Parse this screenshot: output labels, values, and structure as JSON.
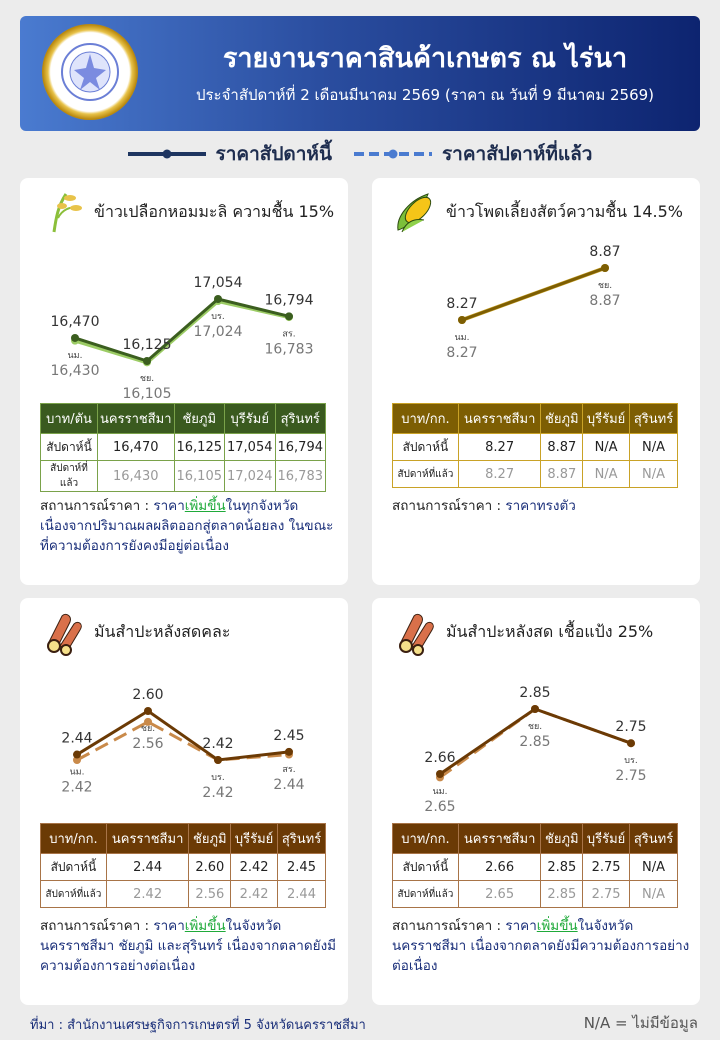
{
  "header": {
    "title": "รายงานราคาสินค้าเกษตร ณ ไร่นา",
    "subtitle": "ประจำสัปดาห์ที่ 2 เดือนมีนาคม 2569 (ราคา ณ วันที่ 9 มีนาคม 2569)"
  },
  "legend": {
    "current": "ราคาสัปดาห์นี้",
    "previous": "ราคาสัปดาห์ที่แล้ว",
    "current_color": "#1e3560",
    "previous_color": "#4a7bd0"
  },
  "status_label": "สถานการณ์ราคา : ",
  "cards": [
    {
      "title": "ข้าวเปลือกหอมมะลิ ความชื้น 15%",
      "icon": "rice-icon",
      "colors": {
        "header": "#3a5a1f",
        "border": "#7aa24a",
        "line": "#3b5e1f",
        "prev": "#9ccc65"
      },
      "table": {
        "unit": "บาท/ตัน",
        "columns": [
          "นครราชสีมา",
          "ชัยภูมิ",
          "บุรีรัมย์",
          "สุรินทร์"
        ],
        "row_current_label": "สัปดาห์นี้",
        "row_previous_label": "สัปดาห์ที่แล้ว",
        "current": [
          "16,470",
          "16,125",
          "17,054",
          "16,794"
        ],
        "previous": [
          "16,430",
          "16,105",
          "17,024",
          "16,783"
        ]
      },
      "status": {
        "a": "ราคา",
        "up": "เพิ่มขึ้น",
        "b": "ในทุกจังหวัด เนื่องจากปริมาณผลผลิตออกสู่ตลาดน้อยลง ในขณะที่ความต้องการยังคงมีอยู่ต่อเนื่อง"
      }
    },
    {
      "title": "ข้าวโพดเลี้ยงสัตว์ความชื้น 14.5%",
      "icon": "corn-icon",
      "colors": {
        "header": "#7d5e03",
        "border": "#c9a227",
        "line": "#7d5e03",
        "prev": "#c9a227"
      },
      "table": {
        "unit": "บาท/กก.",
        "columns": [
          "นครราชสีมา",
          "ชัยภูมิ",
          "บุรีรัมย์",
          "สุรินทร์"
        ],
        "row_current_label": "สัปดาห์นี้",
        "row_previous_label": "สัปดาห์ที่แล้ว",
        "current": [
          "8.27",
          "8.87",
          "N/A",
          "N/A"
        ],
        "previous": [
          "8.27",
          "8.87",
          "N/A",
          "N/A"
        ]
      },
      "status": {
        "a": "ราคาทรงตัว",
        "up": "",
        "b": ""
      }
    },
    {
      "title": "มันสำปะหลังสดคละ",
      "icon": "cassava-icon",
      "colors": {
        "header": "#6b3a05",
        "border": "#a87448",
        "line": "#6b3a05",
        "prev": "#c98a4a"
      },
      "table": {
        "unit": "บาท/กก.",
        "columns": [
          "นครราชสีมา",
          "ชัยภูมิ",
          "บุรีรัมย์",
          "สุรินทร์"
        ],
        "row_current_label": "สัปดาห์นี้",
        "row_previous_label": "สัปดาห์ที่แล้ว",
        "current": [
          "2.44",
          "2.60",
          "2.42",
          "2.45"
        ],
        "previous": [
          "2.42",
          "2.56",
          "2.42",
          "2.44"
        ]
      },
      "status": {
        "a": "ราคา",
        "up": "เพิ่มขึ้น",
        "b": "ในจังหวัดนครราชสีมา ชัยภูมิ และสุรินทร์ เนื่องจากตลาดยังมีความต้องการอย่างต่อเนื่อง"
      }
    },
    {
      "title": "มันสำปะหลังสด เชื้อแป้ง 25%",
      "icon": "cassava-icon",
      "colors": {
        "header": "#6b3a05",
        "border": "#a87448",
        "line": "#6b3a05",
        "prev": "#c98a4a"
      },
      "table": {
        "unit": "บาท/กก.",
        "columns": [
          "นครราชสีมา",
          "ชัยภูมิ",
          "บุรีรัมย์",
          "สุรินทร์"
        ],
        "row_current_label": "สัปดาห์นี้",
        "row_previous_label": "สัปดาห์ที่แล้ว",
        "current": [
          "2.66",
          "2.85",
          "2.75",
          "N/A"
        ],
        "previous": [
          "2.65",
          "2.85",
          "2.75",
          "N/A"
        ]
      },
      "status": {
        "a": "ราคา",
        "up": "เพิ่มขึ้น",
        "b": "ในจังหวัดนครราชสีมา เนื่องจากตลาดยังมีความต้องการอย่างต่อเนื่อง"
      }
    }
  ],
  "chart_data": [
    {
      "type": "line",
      "categories": [
        "นม.",
        "ชย.",
        "บร.",
        "สร."
      ],
      "decimals": 0,
      "series": [
        {
          "name": "ราคาสัปดาห์นี้",
          "values": [
            16470,
            16125,
            17054,
            16794
          ]
        },
        {
          "name": "ราคาสัปดาห์ที่แล้ว",
          "values": [
            16430,
            16105,
            17024,
            16783
          ]
        }
      ]
    },
    {
      "type": "line",
      "categories": [
        "นม.",
        "ชย."
      ],
      "decimals": 2,
      "series": [
        {
          "name": "ราคาสัปดาห์นี้",
          "values": [
            8.27,
            8.87
          ]
        },
        {
          "name": "ราคาสัปดาห์ที่แล้ว",
          "values": [
            8.27,
            8.87
          ]
        }
      ]
    },
    {
      "type": "line",
      "categories": [
        "นม.",
        "ชย.",
        "บร.",
        "สร."
      ],
      "decimals": 2,
      "series": [
        {
          "name": "ราคาสัปดาห์นี้",
          "values": [
            2.44,
            2.6,
            2.42,
            2.45
          ]
        },
        {
          "name": "ราคาสัปดาห์ที่แล้ว",
          "values": [
            2.42,
            2.56,
            2.42,
            2.44
          ]
        }
      ]
    },
    {
      "type": "line",
      "categories": [
        "นม.",
        "ชย.",
        "บร."
      ],
      "decimals": 2,
      "series": [
        {
          "name": "ราคาสัปดาห์นี้",
          "values": [
            2.66,
            2.85,
            2.75
          ]
        },
        {
          "name": "ราคาสัปดาห์ที่แล้ว",
          "values": [
            2.65,
            2.85,
            2.75
          ]
        }
      ]
    }
  ],
  "footer": {
    "source": "ที่มา : สำนักงานเศรษฐกิจการเกษตรที่ 5 จังหวัดนครราชสีมา",
    "na_note": "N/A = ไม่มีข้อมูล"
  }
}
